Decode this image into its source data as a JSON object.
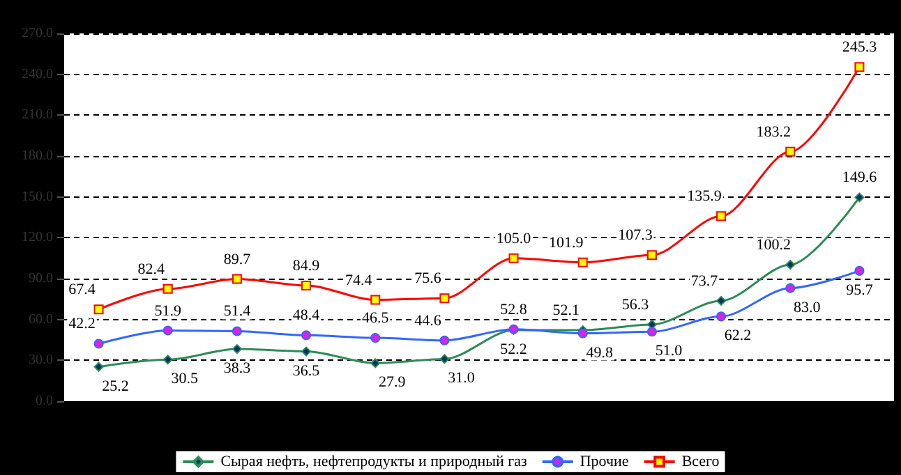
{
  "chart_data": {
    "type": "line",
    "categories": [
      null,
      null,
      null,
      null,
      null,
      null,
      null,
      null,
      null,
      null,
      null,
      null
    ],
    "series": [
      {
        "name": "Сырая нефть, нефтепродукты и природный газ",
        "color": "#2e8b57",
        "marker": "diamond",
        "values": [
          25.2,
          30.5,
          38.3,
          36.5,
          27.9,
          31.0,
          52.2,
          52.1,
          56.3,
          73.7,
          100.2,
          149.6
        ],
        "value_labels": [
          "25.2",
          "30.5",
          "38.3",
          "36.5",
          "27.9",
          "31.0",
          "52.2",
          "52.1",
          "56.3",
          "73.7",
          "100.2",
          "149.6"
        ]
      },
      {
        "name": "Прочие",
        "color": "#3366ff",
        "marker": "circle",
        "values": [
          42.2,
          51.9,
          51.4,
          48.4,
          46.5,
          44.6,
          52.8,
          49.8,
          51.0,
          62.2,
          83.0,
          95.7
        ],
        "value_labels": [
          "42.2",
          "51.9",
          "51.4",
          "48.4",
          "46.5",
          "44.6",
          "52.8",
          "49.8",
          "51.0",
          "62.2",
          "83.0",
          "95.7"
        ]
      },
      {
        "name": "Всего",
        "color": "#ff0000",
        "marker": "square",
        "values": [
          67.4,
          82.4,
          89.7,
          84.9,
          74.4,
          75.6,
          105.0,
          101.9,
          107.3,
          135.9,
          183.2,
          245.3
        ],
        "value_labels": [
          "67.4",
          "82.4",
          "89.7",
          "84.9",
          "74.4",
          "75.6",
          "105.0",
          "101.9",
          "107.3",
          "135.9",
          "183.2",
          "245.3"
        ]
      }
    ],
    "ylim": [
      0,
      270
    ],
    "yticks": [
      {
        "value": 0,
        "label": "0.0"
      },
      {
        "value": 30,
        "label": "30.0"
      },
      {
        "value": 60,
        "label": "60.0"
      },
      {
        "value": 90,
        "label": "90.0"
      },
      {
        "value": 120,
        "label": "120.0"
      },
      {
        "value": 150,
        "label": "150.0"
      },
      {
        "value": 180,
        "label": "180.0"
      },
      {
        "value": 210,
        "label": "210.0"
      },
      {
        "value": 240,
        "label": "240.0"
      },
      {
        "value": 270,
        "label": "270.0"
      }
    ],
    "grid": "y",
    "legend": "bottom",
    "line_style": "solid"
  }
}
